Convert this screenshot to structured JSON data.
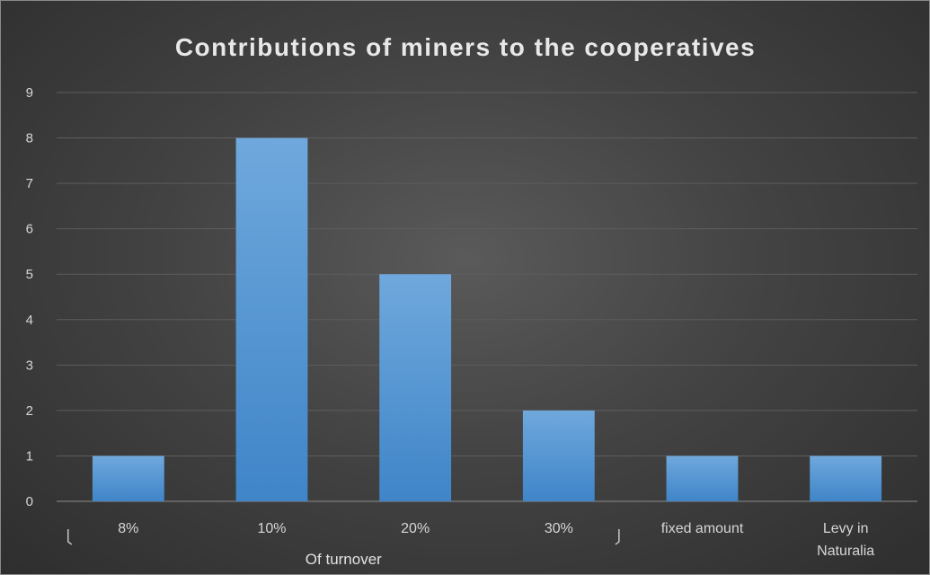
{
  "chart_data": {
    "type": "bar",
    "title": "Contributions  of miners to the cooperatives",
    "xlabel": "",
    "ylabel": "",
    "categories": [
      "8%",
      "10%",
      "20%",
      "30%",
      "fixed amount",
      "Levy in Naturalia"
    ],
    "category_lines": [
      [
        "8%"
      ],
      [
        "10%"
      ],
      [
        "20%"
      ],
      [
        "30%"
      ],
      [
        "fixed amount"
      ],
      [
        "Levy in",
        "Naturalia"
      ]
    ],
    "values": [
      1,
      8,
      5,
      2,
      1,
      1
    ],
    "ylim": [
      0,
      9
    ],
    "yticks": [
      "0",
      "1",
      "2",
      "3",
      "4",
      "5",
      "6",
      "7",
      "8",
      "9"
    ],
    "grid": true,
    "legend": "none",
    "group_label": {
      "text": "Of turnover",
      "spans": [
        "8%",
        "10%",
        "20%",
        "30%"
      ]
    },
    "colors": {
      "bar_top": "#6fa8dc",
      "bar_bottom": "#3f85c8",
      "background": "#434343",
      "grid": "#5d5d5d",
      "text": "#d6d6d6"
    }
  }
}
